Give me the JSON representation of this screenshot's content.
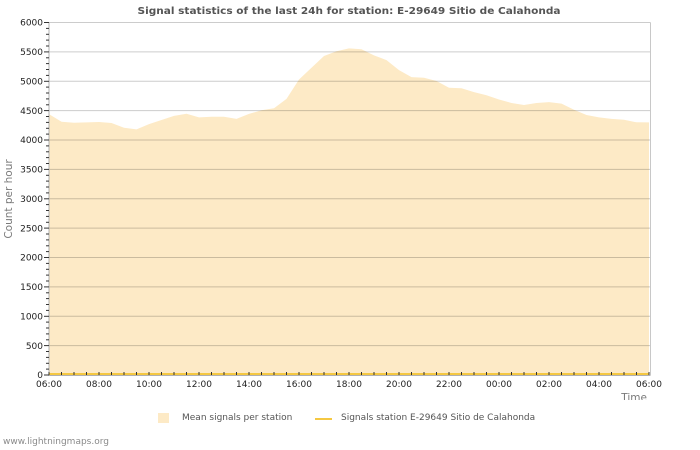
{
  "footer": {
    "site_text": "www.lightningmaps.org"
  },
  "legend": {
    "area_swatch_icon": "square-swatch",
    "line_swatch_icon": "line-swatch"
  },
  "chart_data": {
    "type": "area",
    "title": "Signal statistics of the last 24h for station: E-29649 Sitio de Calahonda",
    "xlabel": "Time",
    "ylabel": "Count per hour",
    "ylim": [
      0,
      6000
    ],
    "yticks": [
      0,
      500,
      1000,
      1500,
      2000,
      2500,
      3000,
      3500,
      4000,
      4500,
      5000,
      5500,
      6000
    ],
    "xtick_labels": [
      "06:00",
      "08:00",
      "10:00",
      "12:00",
      "14:00",
      "16:00",
      "18:00",
      "20:00",
      "22:00",
      "00:00",
      "02:00",
      "04:00",
      "06:00"
    ],
    "grid": "horizontal",
    "legend_position": "bottom",
    "x": [
      "06:00",
      "06:30",
      "07:00",
      "07:30",
      "08:00",
      "08:30",
      "09:00",
      "09:30",
      "10:00",
      "10:30",
      "11:00",
      "11:30",
      "12:00",
      "12:30",
      "13:00",
      "13:30",
      "14:00",
      "14:30",
      "15:00",
      "15:30",
      "16:00",
      "16:30",
      "17:00",
      "17:30",
      "18:00",
      "18:30",
      "19:00",
      "19:30",
      "20:00",
      "20:30",
      "21:00",
      "21:30",
      "22:00",
      "22:30",
      "23:00",
      "23:30",
      "00:00",
      "00:30",
      "01:00",
      "01:30",
      "02:00",
      "02:30",
      "03:00",
      "03:30",
      "04:00",
      "04:30",
      "05:00",
      "05:30",
      "06:00"
    ],
    "series": [
      {
        "name": "Mean signals per station",
        "type": "area",
        "color": "#fdeac6",
        "values": [
          4440,
          4310,
          4295,
          4300,
          4306,
          4290,
          4210,
          4181,
          4270,
          4340,
          4410,
          4448,
          4385,
          4395,
          4395,
          4360,
          4445,
          4505,
          4540,
          4700,
          5030,
          5230,
          5430,
          5510,
          5560,
          5545,
          5440,
          5360,
          5190,
          5070,
          5058,
          5005,
          4890,
          4880,
          4815,
          4762,
          4690,
          4630,
          4595,
          4630,
          4645,
          4620,
          4515,
          4425,
          4385,
          4360,
          4345,
          4302,
          4300
        ]
      },
      {
        "name": "Signals station E-29649 Sitio de Calahonda",
        "type": "line",
        "color": "#f5c842",
        "values": [
          0,
          0,
          0,
          0,
          0,
          0,
          0,
          0,
          0,
          0,
          0,
          0,
          0,
          0,
          0,
          0,
          0,
          0,
          0,
          0,
          0,
          0,
          0,
          0,
          0,
          0,
          0,
          0,
          0,
          0,
          0,
          0,
          0,
          0,
          0,
          0,
          0,
          0,
          0,
          0,
          0,
          0,
          0,
          0,
          0,
          0,
          0,
          0,
          0
        ]
      }
    ]
  }
}
